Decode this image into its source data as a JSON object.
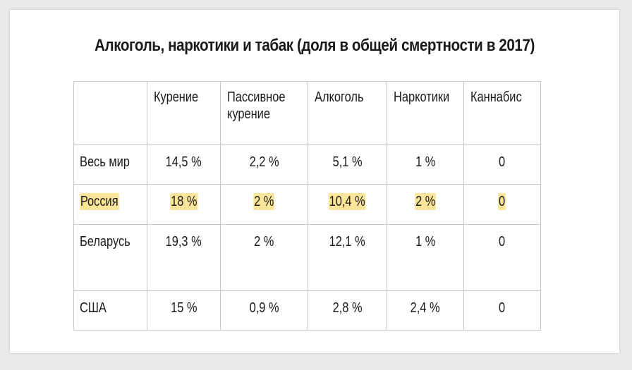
{
  "title": "Алкоголь, наркотики и табак (доля в общей смертности в 2017)",
  "table": {
    "columns": [
      "",
      "Курение",
      "Пассивное курение",
      "Алкоголь",
      "Наркотики",
      "Каннабис"
    ],
    "column_lines": {
      "passive": [
        "Пассивное",
        "курение"
      ]
    },
    "rows": [
      {
        "label": "Весь мир",
        "values": [
          "14,5 %",
          "2,2 %",
          "5,1 %",
          "1 %",
          "0"
        ],
        "highlight": false
      },
      {
        "label": "Россия",
        "values": [
          "18 %",
          "2 %",
          "10,4 %",
          "2 %",
          "0"
        ],
        "highlight": true
      },
      {
        "label": "Беларусь",
        "values": [
          "19,3 %",
          "2 %",
          "12,1 %",
          "1 %",
          "0"
        ],
        "highlight": false
      },
      {
        "label": "США",
        "values": [
          "15 %",
          "0,9 %",
          "2,8 %",
          "2,4 %",
          "0"
        ],
        "highlight": false
      }
    ]
  },
  "colors": {
    "highlight": "#fbe59a",
    "border": "#c8c8c8",
    "text": "#1a1a1a",
    "background": "#e9e9e9",
    "card": "#ffffff"
  }
}
